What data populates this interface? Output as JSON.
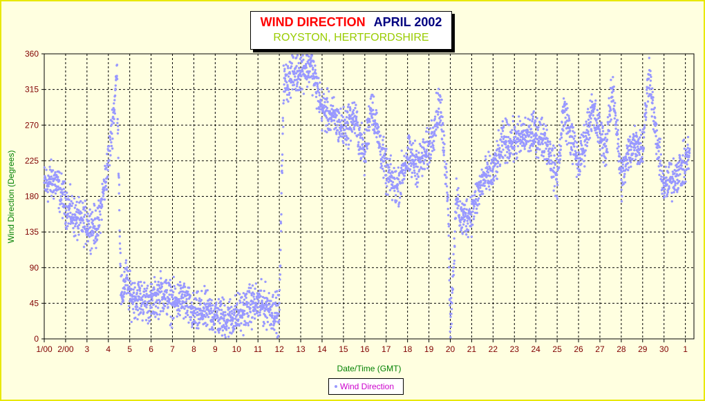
{
  "chart_data": {
    "type": "scatter",
    "title": "WIND DIRECTION",
    "title_period": "APRIL 2002",
    "subtitle": "ROYSTON, HERTFORDSHIRE",
    "xlabel": "Date/Time (GMT)",
    "ylabel": "Wind Direction (Degrees)",
    "ylim": [
      0,
      360
    ],
    "yticks": [
      0,
      45,
      90,
      135,
      180,
      225,
      270,
      315,
      360
    ],
    "xlim": [
      1,
      31.4
    ],
    "xtick_labels": [
      "1/00",
      "2/00",
      "3",
      "4",
      "5",
      "6",
      "7",
      "8",
      "9",
      "10",
      "11",
      "12",
      "13",
      "14",
      "15",
      "16",
      "17",
      "18",
      "19",
      "20",
      "21",
      "22",
      "23",
      "24",
      "25",
      "26",
      "27",
      "28",
      "29",
      "30",
      "1"
    ],
    "grid": true,
    "legend_position": "bottom",
    "series": [
      {
        "name": "Wind Direction",
        "color": "#9999ff",
        "typical_direction": [
          [
            1.0,
            195
          ],
          [
            1.5,
            200
          ],
          [
            2.0,
            170
          ],
          [
            2.5,
            150
          ],
          [
            3.0,
            145
          ],
          [
            3.5,
            140
          ],
          [
            4.0,
            225
          ],
          [
            4.3,
            300
          ],
          [
            4.4,
            340
          ],
          [
            4.6,
            45
          ],
          [
            4.8,
            80
          ],
          [
            5.0,
            55
          ],
          [
            5.5,
            50
          ],
          [
            6.0,
            45
          ],
          [
            6.5,
            60
          ],
          [
            7.0,
            45
          ],
          [
            7.5,
            50
          ],
          [
            8.0,
            30
          ],
          [
            8.5,
            35
          ],
          [
            9.0,
            30
          ],
          [
            9.5,
            25
          ],
          [
            10.0,
            30
          ],
          [
            10.5,
            40
          ],
          [
            11.0,
            45
          ],
          [
            11.5,
            40
          ],
          [
            12.0,
            30
          ],
          [
            12.2,
            320
          ],
          [
            12.5,
            330
          ],
          [
            13.0,
            340
          ],
          [
            13.5,
            345
          ],
          [
            14.0,
            290
          ],
          [
            14.5,
            280
          ],
          [
            15.0,
            265
          ],
          [
            15.5,
            280
          ],
          [
            16.0,
            230
          ],
          [
            16.3,
            300
          ],
          [
            16.6,
            260
          ],
          [
            17.0,
            210
          ],
          [
            17.5,
            190
          ],
          [
            18.0,
            230
          ],
          [
            18.5,
            220
          ],
          [
            19.0,
            240
          ],
          [
            19.5,
            300
          ],
          [
            19.9,
            180
          ],
          [
            20.0,
            12
          ],
          [
            20.3,
            180
          ],
          [
            20.5,
            150
          ],
          [
            21.0,
            160
          ],
          [
            21.5,
            200
          ],
          [
            22.0,
            210
          ],
          [
            22.5,
            250
          ],
          [
            23.0,
            250
          ],
          [
            23.5,
            255
          ],
          [
            24.0,
            260
          ],
          [
            24.5,
            250
          ],
          [
            25.0,
            200
          ],
          [
            25.3,
            290
          ],
          [
            25.6,
            260
          ],
          [
            26.0,
            220
          ],
          [
            26.3,
            250
          ],
          [
            26.6,
            290
          ],
          [
            27.0,
            260
          ],
          [
            27.3,
            240
          ],
          [
            27.6,
            320
          ],
          [
            28.0,
            200
          ],
          [
            28.3,
            230
          ],
          [
            28.6,
            250
          ],
          [
            29.0,
            240
          ],
          [
            29.3,
            340
          ],
          [
            29.6,
            260
          ],
          [
            30.0,
            190
          ],
          [
            30.3,
            200
          ],
          [
            30.6,
            210
          ],
          [
            31.0,
            220
          ],
          [
            31.2,
            240
          ]
        ]
      }
    ]
  }
}
